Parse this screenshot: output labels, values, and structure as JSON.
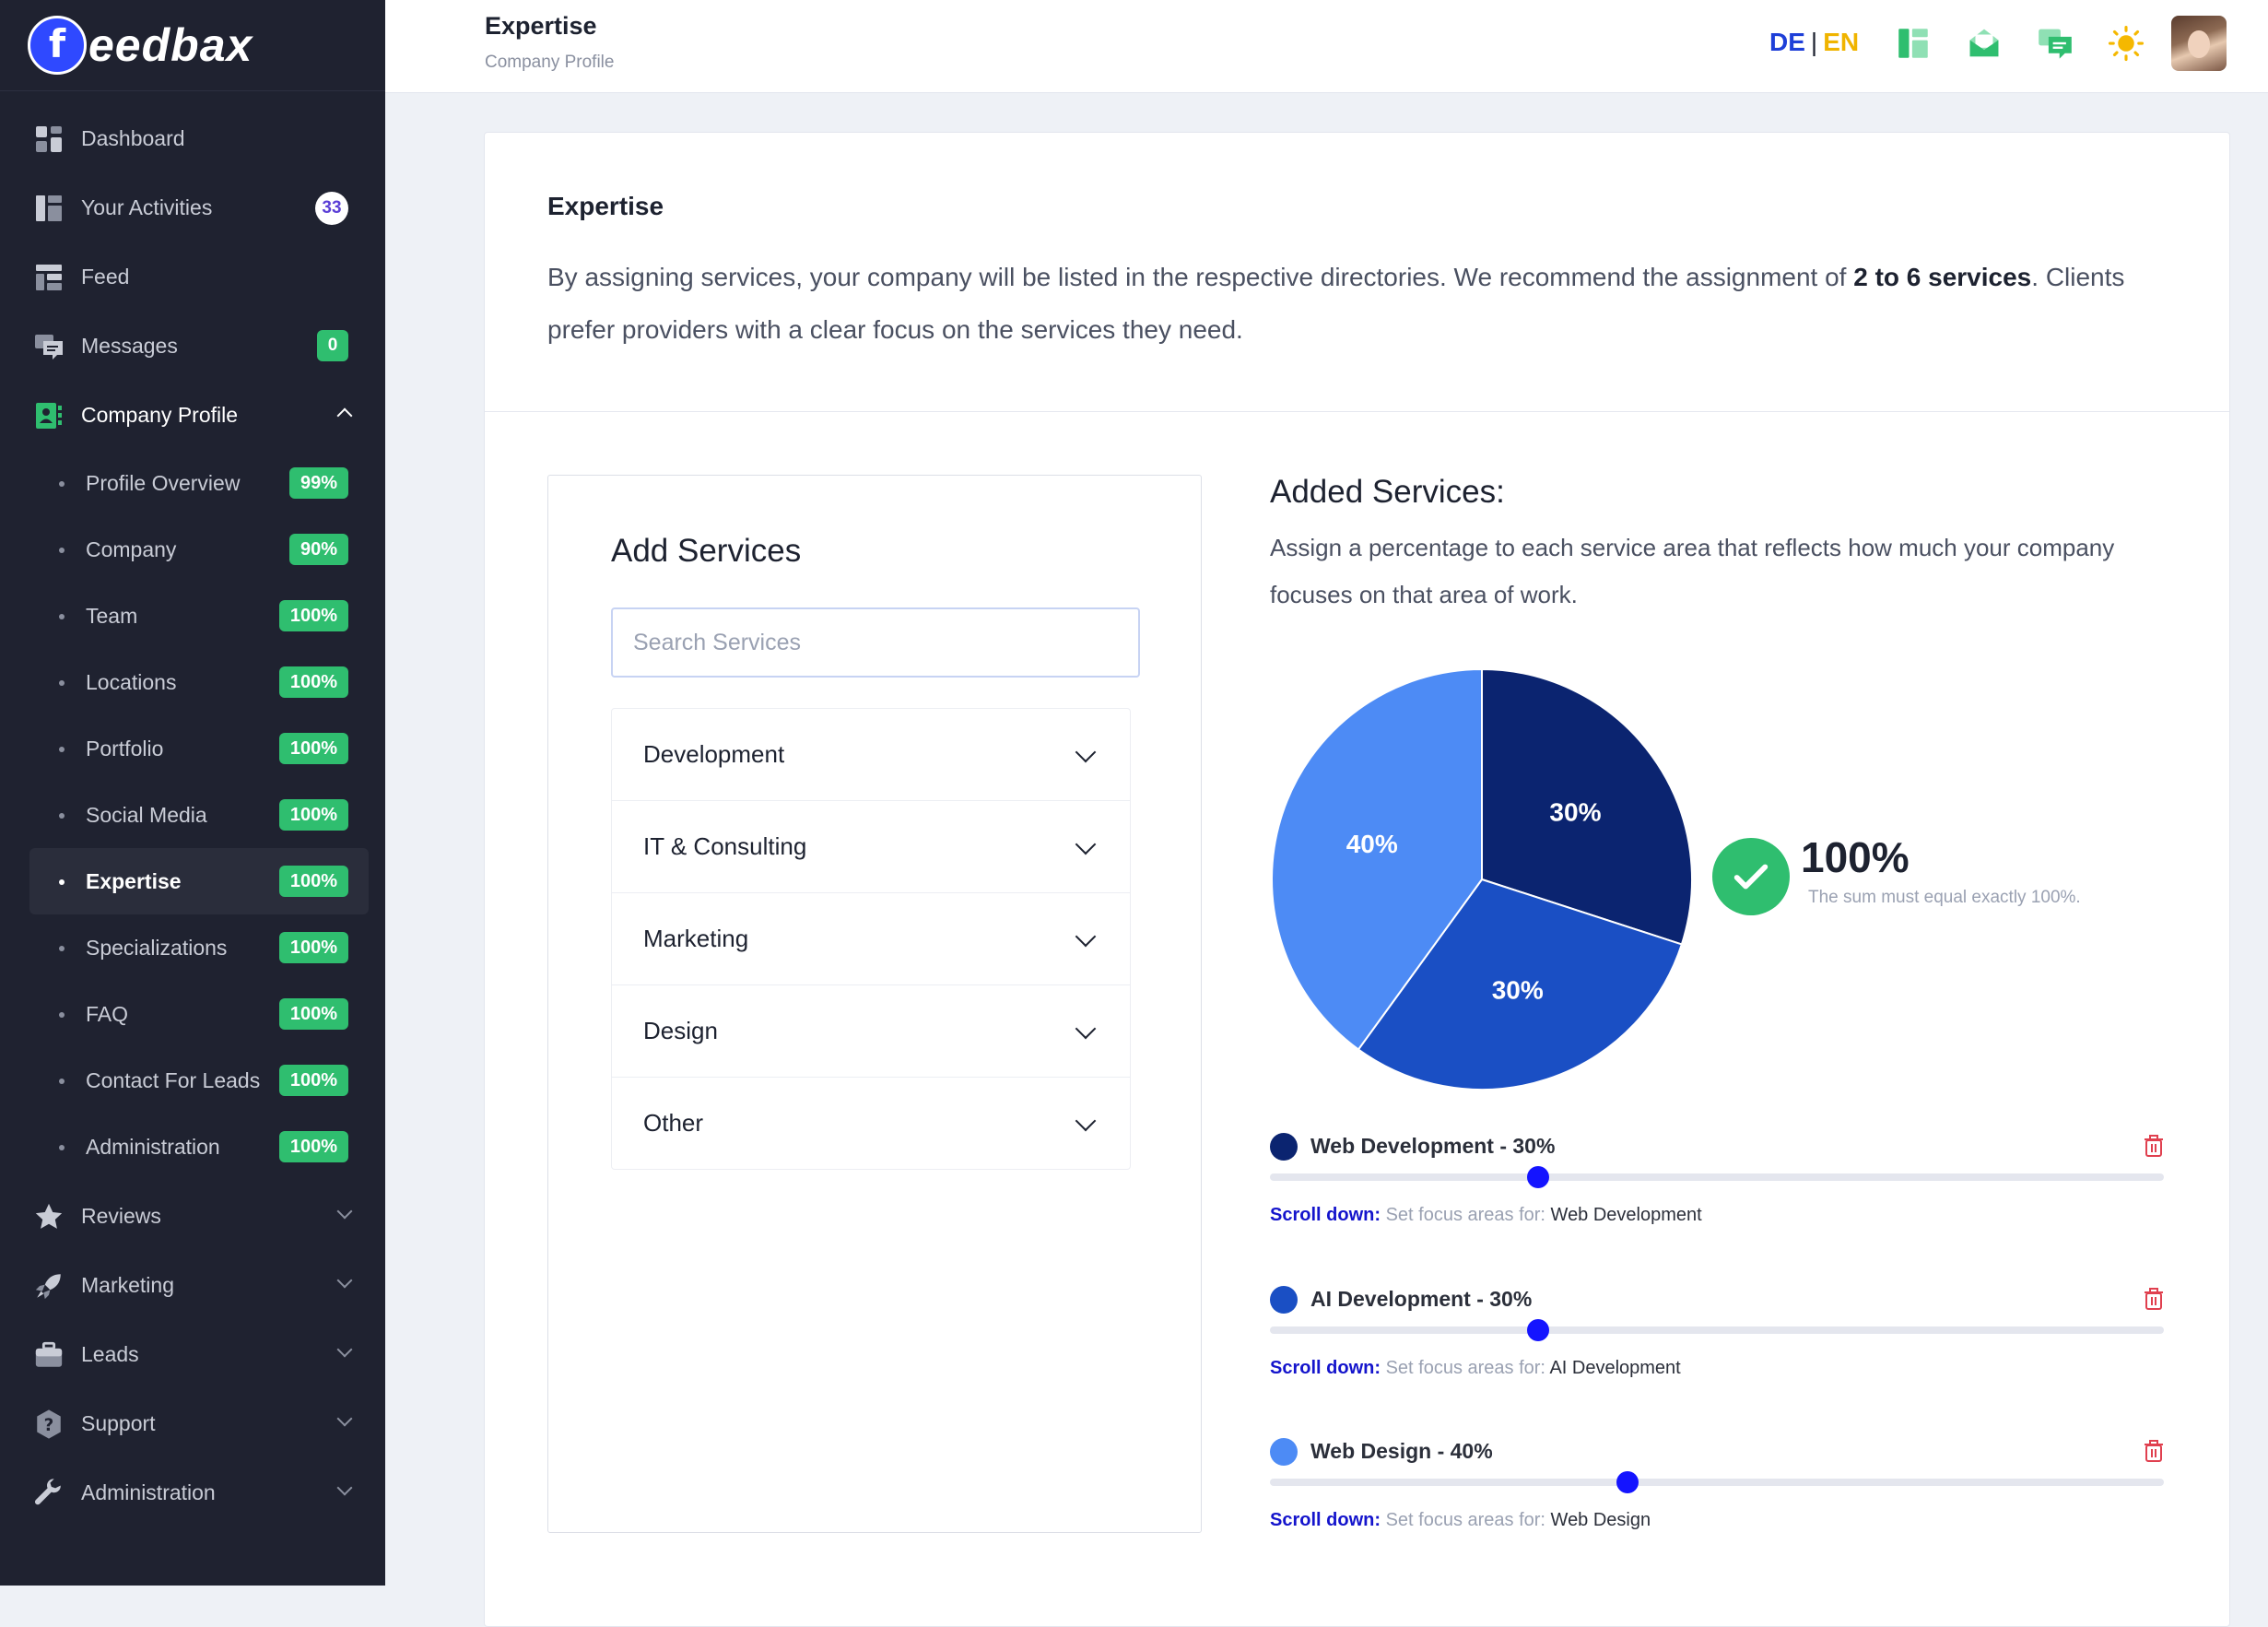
{
  "brand": {
    "logo_letter": "f",
    "name": "eedbax"
  },
  "sidebar": {
    "items": [
      {
        "label": "Dashboard",
        "icon": "dashboard-icon"
      },
      {
        "label": "Your Activities",
        "icon": "activities-icon",
        "badge": "33"
      },
      {
        "label": "Feed",
        "icon": "feed-icon"
      },
      {
        "label": "Messages",
        "icon": "messages-icon",
        "badge": "0"
      },
      {
        "label": "Company Profile",
        "icon": "company-profile-icon",
        "expanded": true
      }
    ],
    "sub_items": [
      {
        "label": "Profile Overview",
        "badge": "99%"
      },
      {
        "label": "Company",
        "badge": "90%"
      },
      {
        "label": "Team",
        "badge": "100%"
      },
      {
        "label": "Locations",
        "badge": "100%"
      },
      {
        "label": "Portfolio",
        "badge": "100%"
      },
      {
        "label": "Social Media",
        "badge": "100%"
      },
      {
        "label": "Expertise",
        "badge": "100%",
        "current": true
      },
      {
        "label": "Specializations",
        "badge": "100%"
      },
      {
        "label": "FAQ",
        "badge": "100%"
      },
      {
        "label": "Contact For Leads",
        "badge": "100%"
      },
      {
        "label": "Administration",
        "badge": "100%"
      }
    ],
    "bottom_items": [
      {
        "label": "Reviews",
        "icon": "star-icon"
      },
      {
        "label": "Marketing",
        "icon": "rocket-icon"
      },
      {
        "label": "Leads",
        "icon": "briefcase-icon"
      },
      {
        "label": "Support",
        "icon": "help-icon"
      },
      {
        "label": "Administration",
        "icon": "wrench-icon"
      }
    ]
  },
  "header": {
    "title": "Expertise",
    "breadcrumb": "Company Profile",
    "lang_de": "DE",
    "lang_sep": "|",
    "lang_en": "EN"
  },
  "expertise": {
    "title": "Expertise",
    "desc_part1": "By assigning services, your company will be listed in the respective directories. We recommend the assignment of ",
    "desc_bold": "2 to 6 services",
    "desc_part2": ". Clients prefer providers with a clear focus on the services they need."
  },
  "add_services": {
    "title": "Add Services",
    "search_placeholder": "Search Services",
    "categories": [
      "Development",
      "IT & Consulting",
      "Marketing",
      "Design",
      "Other"
    ]
  },
  "added_services": {
    "title": "Added Services:",
    "description": "Assign a percentage to each service area that reflects how much your company focuses on that area of work.",
    "total": "100%",
    "total_note": "The sum must equal exactly 100%.",
    "hint_prefix": "Scroll down:",
    "hint_middle": "Set focus areas for:",
    "services": [
      {
        "name": "Web Development",
        "percent": 30,
        "label": "Web Development - 30%",
        "color": "#0b2470"
      },
      {
        "name": "AI Development",
        "percent": 30,
        "label": "AI Development - 30%",
        "color": "#1a4fc4"
      },
      {
        "name": "Web Design",
        "percent": 40,
        "label": "Web Design - 40%",
        "color": "#4d8bf5"
      }
    ]
  },
  "chart_data": {
    "type": "pie",
    "categories": [
      "Web Development",
      "AI Development",
      "Web Design"
    ],
    "values": [
      30,
      30,
      40
    ],
    "labels": [
      "30%",
      "30%",
      "40%"
    ],
    "colors": [
      "#0b2470",
      "#1a4fc4",
      "#4d8bf5"
    ]
  },
  "colors": {
    "sidebar_bg": "#1f2230",
    "accent_green": "#2fbe6f",
    "slider_thumb": "#1414ff",
    "delete_red": "#e0404f"
  }
}
